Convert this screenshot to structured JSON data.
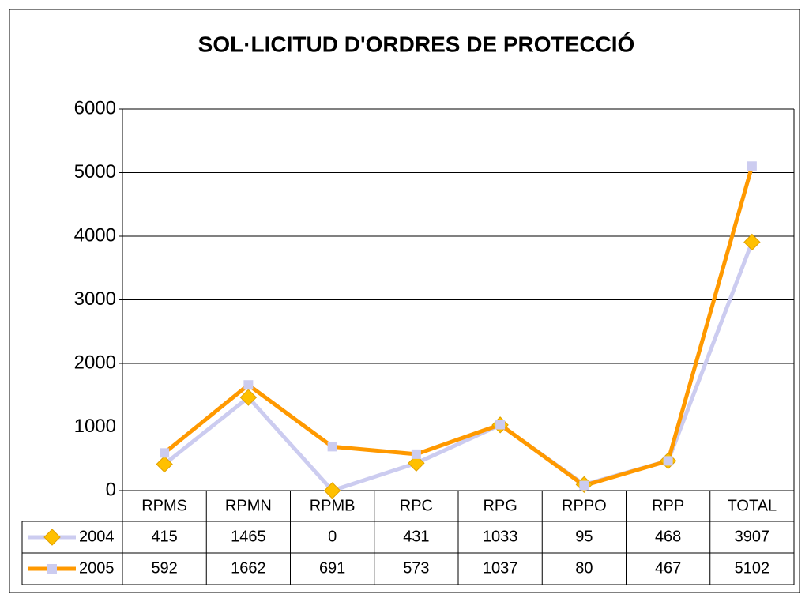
{
  "chart_data": {
    "type": "line",
    "title": "SOL·LICITUD D'ORDRES DE PROTECCIÓ",
    "categories": [
      "RPMS",
      "RPMN",
      "RPMB",
      "RPC",
      "RPG",
      "RPPO",
      "RPP",
      "TOTAL"
    ],
    "series": [
      {
        "name": "2004",
        "color": "#ccccf0",
        "marker": "diamond",
        "marker_color": "#ffc000",
        "values": [
          415,
          1465,
          0,
          431,
          1033,
          95,
          468,
          3907
        ]
      },
      {
        "name": "2005",
        "color": "#ff9900",
        "marker": "square",
        "marker_color": "#ccccf0",
        "values": [
          592,
          1662,
          691,
          573,
          1037,
          80,
          467,
          5102
        ]
      }
    ],
    "ylim": [
      0,
      6000
    ],
    "yticks": [
      0,
      1000,
      2000,
      3000,
      4000,
      5000,
      6000
    ],
    "grid": true
  }
}
